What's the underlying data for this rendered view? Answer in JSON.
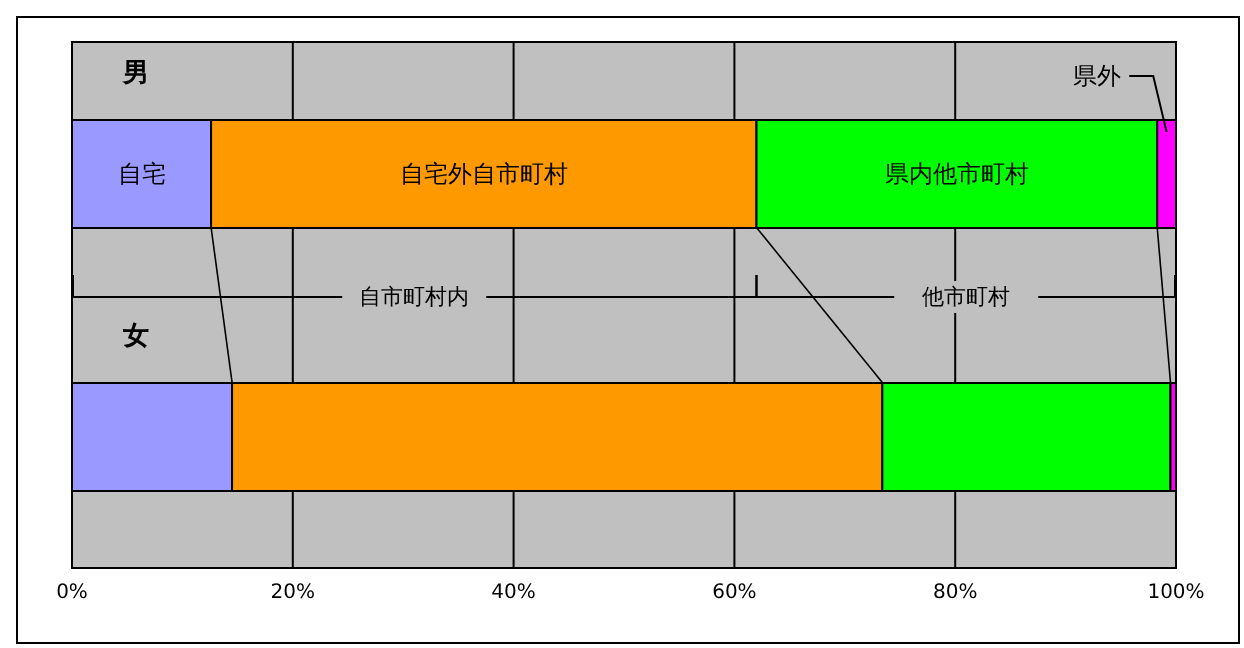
{
  "chart_data": {
    "type": "bar",
    "orientation": "horizontal",
    "stacked": true,
    "categories": [
      "男",
      "女"
    ],
    "series": [
      {
        "name": "自宅",
        "color": "#9999ff",
        "values": [
          12.6,
          14.5
        ]
      },
      {
        "name": "自宅外自市町村",
        "color": "#ff9900",
        "values": [
          49.4,
          58.9
        ]
      },
      {
        "name": "県内他市町村",
        "color": "#00ff00",
        "values": [
          36.3,
          26.1
        ]
      },
      {
        "name": "県外",
        "color": "#ff00ff",
        "values": [
          1.7,
          0.5
        ]
      }
    ],
    "xlim": [
      0,
      100
    ],
    "xticks": [
      {
        "value": 0,
        "label": "0%"
      },
      {
        "value": 20,
        "label": "20%"
      },
      {
        "value": 40,
        "label": "40%"
      },
      {
        "value": 60,
        "label": "60%"
      },
      {
        "value": 80,
        "label": "80%"
      },
      {
        "value": 100,
        "label": "100%"
      }
    ],
    "grid": "x",
    "annotations": [
      "自市町村内",
      "他市町村"
    ]
  }
}
